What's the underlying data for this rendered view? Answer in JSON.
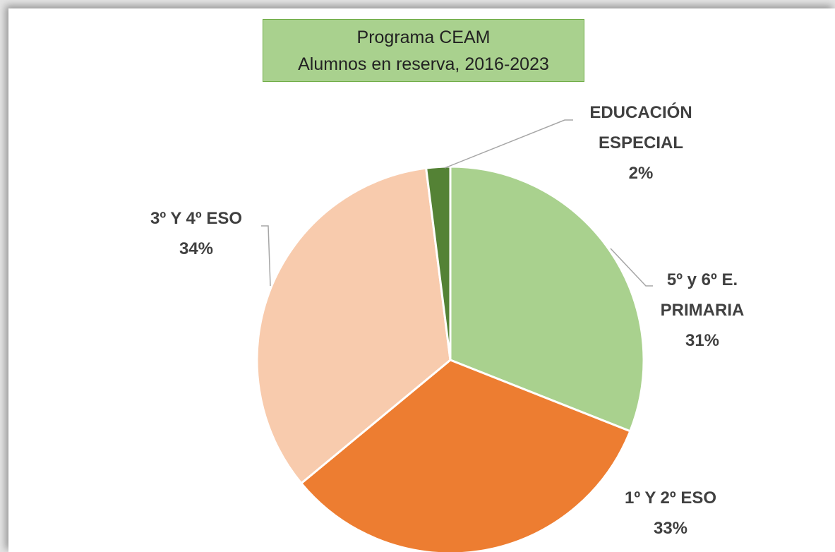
{
  "chart_data": {
    "type": "pie",
    "title": "Programa CEAM",
    "subtitle": "Alumnos en reserva, 2016-2023",
    "categories": [
      "5º y 6º E. PRIMARIA",
      "1º Y 2º ESO",
      "3º Y 4º ESO",
      "EDUCACIÓN ESPECIAL"
    ],
    "values": [
      31,
      33,
      34,
      2
    ],
    "value_labels": [
      "31%",
      "33%",
      "34%",
      "2%"
    ],
    "colors": [
      "#a9d18e",
      "#ed7d31",
      "#f8cbad",
      "#548235"
    ]
  }
}
